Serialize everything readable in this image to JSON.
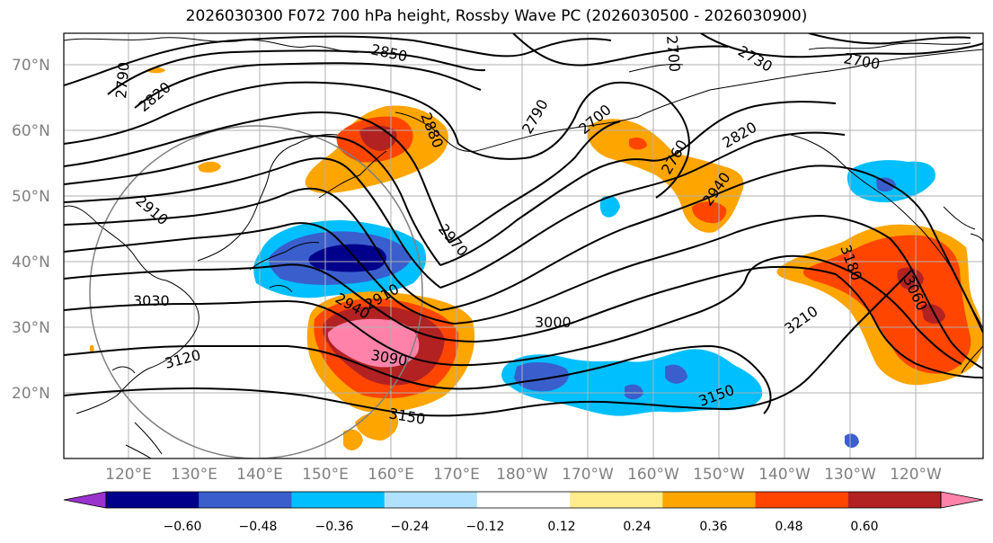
{
  "title": "2026030300 F072 700 hPa height, Rossby Wave PC (2026030500 - 2026030900)",
  "lat_labels": [
    "70°N",
    "60°N",
    "50°N",
    "40°N",
    "30°N",
    "20°N"
  ],
  "lon_labels": [
    "120°E",
    "130°E",
    "140°E",
    "150°E",
    "160°E",
    "170°E",
    "180°W",
    "170°W",
    "160°W",
    "150°W",
    "140°W",
    "130°W",
    "120°W"
  ],
  "contour_labels": [
    "2850",
    "2790",
    "2820",
    "2880",
    "2790",
    "2700",
    "2730",
    "2700",
    "2760",
    "2820",
    "2940",
    "2910",
    "2970",
    "3030",
    "2940",
    "2910",
    "3000",
    "3180",
    "3060",
    "3090",
    "3210",
    "3120",
    "3150",
    "3150",
    "2700"
  ],
  "colorbar": {
    "colors": [
      "#9a32cd",
      "#00008b",
      "#3a5fcd",
      "#00bfff",
      "#b0e2ff",
      "#ffffff",
      "#ffec8b",
      "#ffa500",
      "#ff4500",
      "#b22222",
      "#ff82ab"
    ],
    "tick_labels": [
      "−0.60",
      "−0.48",
      "−0.36",
      "−0.24",
      "−0.12",
      "0.12",
      "0.24",
      "0.36",
      "0.48",
      "0.60"
    ]
  },
  "colors": {
    "contour": "#000000",
    "grid": "#b0b0b0",
    "coast": "#000000",
    "circle": "#808080",
    "label": "#808080"
  }
}
